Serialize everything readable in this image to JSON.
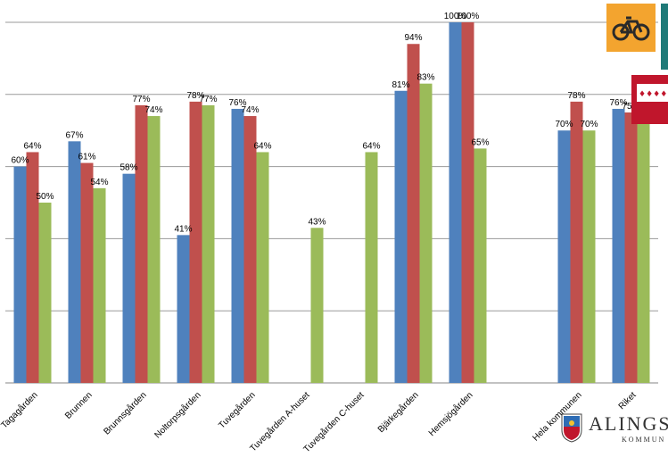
{
  "chart_data": {
    "type": "bar",
    "categories": [
      "Tagagården",
      "Brunnen",
      "Brunnsgården",
      "Noltorpsgården",
      "Tuvegården",
      "Tuvegården A-huset",
      "Tuvegården C-huset",
      "Bjärkegården",
      "Hemsjögården",
      "",
      "Hela kommunen",
      "Riket"
    ],
    "series": [
      {
        "color": "#4f81bd",
        "values": [
          60,
          67,
          58,
          41,
          76,
          null,
          null,
          81,
          100,
          null,
          70,
          76
        ],
        "labels": [
          "60%",
          "67%",
          "58%",
          "41%",
          "76%",
          "",
          "",
          "81%",
          "100%",
          "",
          "70%",
          "76%"
        ]
      },
      {
        "color": "#c0504d",
        "values": [
          64,
          61,
          77,
          78,
          74,
          null,
          null,
          94,
          100,
          null,
          78,
          75
        ],
        "labels": [
          "64%",
          "61%",
          "77%",
          "78%",
          "74%",
          "",
          "",
          "94%",
          "100%",
          "",
          "78%",
          "75%"
        ]
      },
      {
        "color": "#9bbb59",
        "values": [
          50,
          54,
          74,
          77,
          64,
          43,
          64,
          83,
          65,
          null,
          70,
          74
        ],
        "labels": [
          "50%",
          "54%",
          "74%",
          "77%",
          "64%",
          "43%",
          "64%",
          "83%",
          "65%",
          "",
          "70%",
          "74%"
        ]
      }
    ],
    "ylim": [
      0,
      100
    ],
    "grid": true,
    "legend": "none"
  },
  "logo": {
    "name": "ALINGS",
    "sub": "KOMMUN"
  },
  "icons": {
    "bike": "bicycle-icon",
    "crest": "crest-icon",
    "tab": "teal-tab-icon",
    "stamp": "red-stamp-icon"
  },
  "colors": {
    "bike_bg": "#f3a42f",
    "tab": "#1f7a78",
    "stamp": "#c0162c"
  }
}
